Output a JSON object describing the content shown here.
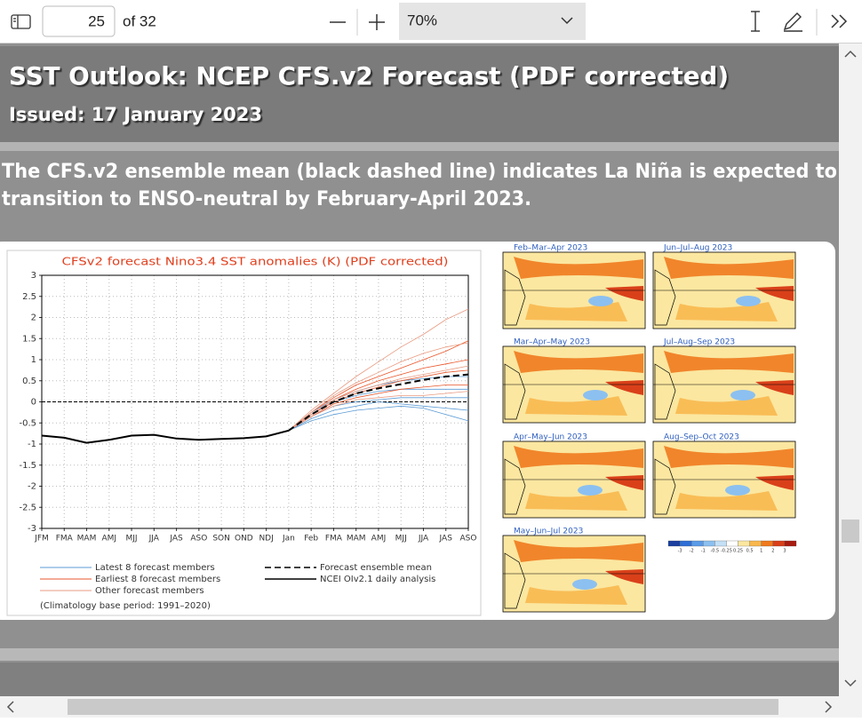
{
  "toolbar": {
    "page": "25",
    "of_pages": "of 32",
    "zoom": "70%"
  },
  "slide": {
    "title": "SST Outlook: NCEP CFS.v2 Forecast (PDF corrected)",
    "subtitle": "Issued: 17 January 2023",
    "body": [
      "The CFS.v2 ensemble mean (black dashed line) indicates La Niña is expected to",
      "transition to ENSO-neutral by February-April 2023."
    ]
  },
  "chart_data": {
    "type": "line",
    "title": "CFSv2 forecast Nino3.4 SST anomalies (K) (PDF corrected)",
    "note": "(Climatology base period: 1991–2020)",
    "categories": [
      "JFM",
      "FMA",
      "MAM",
      "AMJ",
      "MJJ",
      "JJA",
      "JAS",
      "ASO",
      "SON",
      "OND",
      "NDJ",
      "Jan",
      "Feb",
      "FMA",
      "MAM",
      "AMJ",
      "MJJ",
      "JJA",
      "JAS",
      "ASO"
    ],
    "ylim": [
      -3,
      3
    ],
    "yticks": [
      -3,
      -2.5,
      -2,
      -1.5,
      -1,
      -0.5,
      0,
      0.5,
      1,
      1.5,
      2,
      2.5,
      3
    ],
    "grid": true,
    "series": [
      {
        "name": "Latest 8 forecast members",
        "color": "#5b9bd5",
        "members": [
          [
            null,
            null,
            null,
            null,
            null,
            null,
            null,
            null,
            null,
            null,
            null,
            -0.68,
            -0.45,
            -0.3,
            -0.2,
            -0.15,
            -0.1,
            -0.15,
            -0.3,
            -0.45
          ],
          [
            null,
            null,
            null,
            null,
            null,
            null,
            null,
            null,
            null,
            null,
            null,
            -0.68,
            -0.4,
            -0.2,
            -0.1,
            0,
            -0.05,
            -0.1,
            -0.15,
            -0.2
          ],
          [
            null,
            null,
            null,
            null,
            null,
            null,
            null,
            null,
            null,
            null,
            null,
            -0.68,
            -0.35,
            -0.1,
            0,
            0.05,
            0.1,
            0.1,
            0.1,
            0.1
          ],
          [
            null,
            null,
            null,
            null,
            null,
            null,
            null,
            null,
            null,
            null,
            null,
            -0.68,
            -0.3,
            0,
            0.15,
            0.25,
            0.3,
            0.3,
            0.3,
            0.3
          ],
          [
            null,
            null,
            null,
            null,
            null,
            null,
            null,
            null,
            null,
            null,
            null,
            -0.68,
            -0.25,
            0.05,
            0.25,
            0.4,
            0.5,
            0.55,
            0.6,
            0.6
          ]
        ]
      },
      {
        "name": "Earliest 8 forecast members",
        "color": "#e8562a",
        "members": [
          [
            null,
            null,
            null,
            null,
            null,
            null,
            null,
            null,
            null,
            null,
            null,
            -0.68,
            -0.25,
            0.1,
            0.4,
            0.6,
            0.8,
            1.0,
            1.2,
            1.45
          ],
          [
            null,
            null,
            null,
            null,
            null,
            null,
            null,
            null,
            null,
            null,
            null,
            -0.68,
            -0.3,
            0.05,
            0.3,
            0.5,
            0.65,
            0.8,
            0.9,
            1.0
          ],
          [
            null,
            null,
            null,
            null,
            null,
            null,
            null,
            null,
            null,
            null,
            null,
            -0.68,
            -0.3,
            0,
            0.2,
            0.35,
            0.5,
            0.6,
            0.7,
            0.75
          ],
          [
            null,
            null,
            null,
            null,
            null,
            null,
            null,
            null,
            null,
            null,
            null,
            -0.68,
            -0.35,
            -0.05,
            0.1,
            0.2,
            0.3,
            0.35,
            0.4,
            0.4
          ]
        ]
      },
      {
        "name": "Other forecast members",
        "color": "#e89a80",
        "members": [
          [
            null,
            null,
            null,
            null,
            null,
            null,
            null,
            null,
            null,
            null,
            null,
            -0.68,
            -0.2,
            0.2,
            0.6,
            0.95,
            1.3,
            1.6,
            1.95,
            2.2
          ],
          [
            null,
            null,
            null,
            null,
            null,
            null,
            null,
            null,
            null,
            null,
            null,
            -0.68,
            -0.25,
            0.15,
            0.45,
            0.7,
            0.95,
            1.15,
            1.3,
            1.4
          ],
          [
            null,
            null,
            null,
            null,
            null,
            null,
            null,
            null,
            null,
            null,
            null,
            -0.68,
            -0.3,
            0.05,
            0.25,
            0.4,
            0.55,
            0.65,
            0.75,
            0.85
          ],
          [
            null,
            null,
            null,
            null,
            null,
            null,
            null,
            null,
            null,
            null,
            null,
            -0.68,
            -0.35,
            -0.1,
            0.05,
            0.1,
            0.15,
            0.15,
            0.2,
            0.25
          ]
        ]
      },
      {
        "name": "Forecast ensemble mean",
        "color": "#000000",
        "dashed": true,
        "values": [
          null,
          null,
          null,
          null,
          null,
          null,
          null,
          null,
          null,
          null,
          null,
          -0.68,
          -0.3,
          0.0,
          0.2,
          0.32,
          0.42,
          0.52,
          0.6,
          0.65
        ]
      },
      {
        "name": "NCEI OIv2.1 daily analysis",
        "color": "#000000",
        "values": [
          -0.8,
          -0.85,
          -0.97,
          -0.9,
          -0.8,
          -0.78,
          -0.87,
          -0.9,
          -0.88,
          -0.86,
          -0.82,
          -0.68,
          null,
          null,
          null,
          null,
          null,
          null,
          null,
          null
        ]
      }
    ]
  },
  "maps": {
    "titles": [
      "Feb–Mar–Apr 2023",
      "Jun–Jul–Aug 2023",
      "Mar–Apr–May 2023",
      "Jul–Aug–Sep 2023",
      "Apr–May–Jun 2023",
      "Aug–Sep–Oct 2023",
      "May–Jun–Jul 2023"
    ],
    "colorbar": {
      "labels": [
        "-3",
        "-2",
        "-1",
        "-0.5",
        "-0.25",
        "0.25",
        "0.5",
        "1",
        "2",
        "3"
      ],
      "colors": [
        "#1a3fa0",
        "#2f6fd6",
        "#5a9be8",
        "#8cc0f0",
        "#c4e0f7",
        "#ffffff",
        "#fbe7a0",
        "#f8b84e",
        "#f07a1e",
        "#d9401a",
        "#a81c10"
      ]
    }
  }
}
